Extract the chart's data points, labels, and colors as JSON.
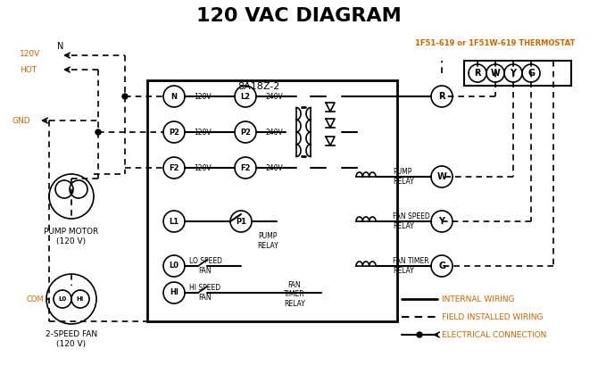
{
  "title": "120 VAC DIAGRAM",
  "title_fontsize": 16,
  "title_color": "#000000",
  "thermostat_label": "1F51-619 or 1F51W-619 THERMOSTAT",
  "thermostat_color": "#cc6600",
  "box_8a18z2_label": "8A18Z-2",
  "pump_motor_label": "PUMP MOTOR\n(120 V)",
  "two_speed_fan_label": "2-SPEED FAN\n(120 V)",
  "legend_internal": "INTERNAL WIRING",
  "legend_field": "FIELD INSTALLED WIRING",
  "legend_electrical": "ELECTRICAL CONNECTION",
  "bg_color": "#ffffff",
  "line_color": "#000000",
  "orange_color": "#cc6600"
}
